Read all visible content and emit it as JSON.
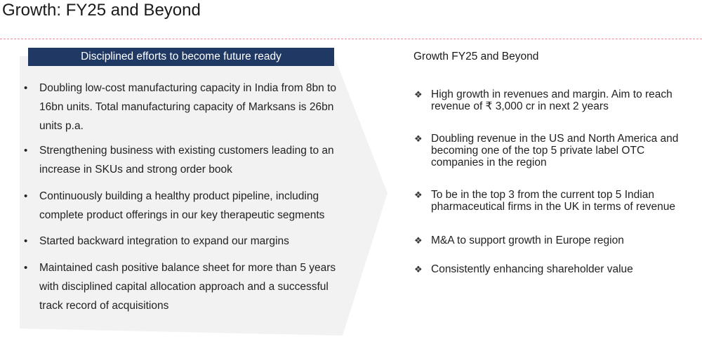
{
  "slide": {
    "title": "Growth: FY25 and Beyond"
  },
  "left_panel": {
    "header": "Disciplined efforts to become future ready",
    "bullet_glyph": "•",
    "items": [
      "Doubling low-cost manufacturing capacity in India from 8bn to 16bn units. Total manufacturing capacity of Marksans is 26bn units p.a.",
      "Strengthening business with existing customers leading to an increase in SKUs and strong order book",
      "Continuously building a healthy product pipeline, including complete product offerings in our key therapeutic segments",
      "Started backward integration to expand our margins",
      "Maintained cash positive balance sheet for more than 5 years with disciplined capital allocation approach and a successful track record of acquisitions"
    ]
  },
  "right_panel": {
    "title": "Growth FY25 and Beyond",
    "bullet_glyph": "❖",
    "items": [
      "High growth in revenues and margin. Aim to reach revenue of ₹ 3,000 cr in next 2 years",
      "Doubling revenue in the US and North America and becoming one of the top 5 private label OTC companies in the region",
      "To be in the top 3 from the current top 5 Indian pharmaceutical firms in the UK in terms of revenue",
      "M&A to support growth in Europe region",
      "Consistently enhancing shareholder value"
    ]
  },
  "colors": {
    "header_bg": "#203864",
    "chevron_fill": "#f2f2f2",
    "divider": "#e8879a"
  }
}
